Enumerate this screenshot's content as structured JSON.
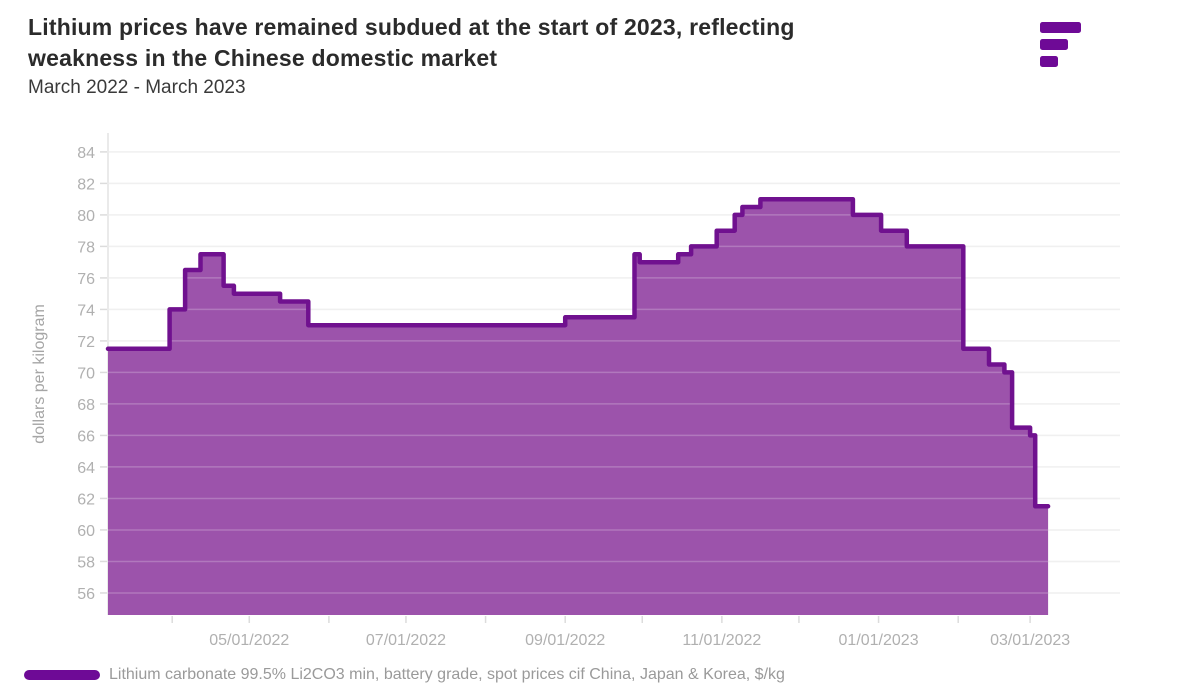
{
  "header": {
    "title_lines": [
      "Lithium prices have remained subdued at the start of 2023, reflecting",
      "weakness in the Chinese domestic market"
    ],
    "subtitle": "March 2022 - March 2023"
  },
  "brand": {
    "logo_color": "#6e0a96"
  },
  "legend": {
    "swatch_color": "#6e0a96",
    "label": "Lithium carbonate 99.5% Li2CO3 min, battery grade, spot prices cif China, Japan & Korea, $/kg"
  },
  "chart_data": {
    "type": "area",
    "title": "Lithium prices have remained subdued at the start of 2023, reflecting weakness in the Chinese domestic market",
    "subtitle": "March 2022 - March 2023",
    "xlabel": "",
    "ylabel": "dollars per kilogram",
    "grid": true,
    "legend_position": "bottom-left",
    "ylim": [
      54.6,
      85.2
    ],
    "yticks": [
      56,
      58,
      60,
      62,
      64,
      66,
      68,
      70,
      72,
      74,
      76,
      78,
      80,
      82,
      84
    ],
    "x_axis": {
      "start_date": "03/07/2022",
      "end_date": "03/07/2023",
      "total_days": 394,
      "tick_labels": [
        "05/01/2022",
        "07/01/2022",
        "09/01/2022",
        "11/01/2022",
        "01/01/2023",
        "03/01/2023"
      ]
    },
    "month_ticks": [
      {
        "day": 25,
        "label": ""
      },
      {
        "day": 55,
        "label": "05/01/2022"
      },
      {
        "day": 86,
        "label": ""
      },
      {
        "day": 116,
        "label": "07/01/2022"
      },
      {
        "day": 147,
        "label": ""
      },
      {
        "day": 178,
        "label": "09/01/2022"
      },
      {
        "day": 208,
        "label": ""
      },
      {
        "day": 239,
        "label": "11/01/2022"
      },
      {
        "day": 269,
        "label": ""
      },
      {
        "day": 300,
        "label": "01/01/2023"
      },
      {
        "day": 331,
        "label": ""
      },
      {
        "day": 359,
        "label": "03/01/2023"
      }
    ],
    "series": [
      {
        "name": "Lithium carbonate 99.5% Li2CO3 min, battery grade, spot prices cif China, Japan & Korea, $/kg",
        "line_color": "#70118f",
        "fill_color": "#9c53ab",
        "step": true,
        "end_day": 366,
        "points_day_value": [
          [
            0,
            71.5
          ],
          [
            24,
            74
          ],
          [
            30,
            76.5
          ],
          [
            36,
            77.5
          ],
          [
            45,
            75.5
          ],
          [
            49,
            75
          ],
          [
            67,
            74.5
          ],
          [
            78,
            73
          ],
          [
            178,
            73.5
          ],
          [
            205,
            77.5
          ],
          [
            207,
            77
          ],
          [
            222,
            77.5
          ],
          [
            227,
            78
          ],
          [
            237,
            79
          ],
          [
            244,
            80
          ],
          [
            247,
            80.5
          ],
          [
            254,
            81
          ],
          [
            290,
            80
          ],
          [
            301,
            79
          ],
          [
            311,
            78
          ],
          [
            333,
            71.5
          ],
          [
            343,
            70.5
          ],
          [
            349,
            70
          ],
          [
            352,
            66.5
          ],
          [
            359,
            66
          ],
          [
            361,
            61.5
          ],
          [
            366,
            61.5
          ]
        ]
      }
    ]
  }
}
